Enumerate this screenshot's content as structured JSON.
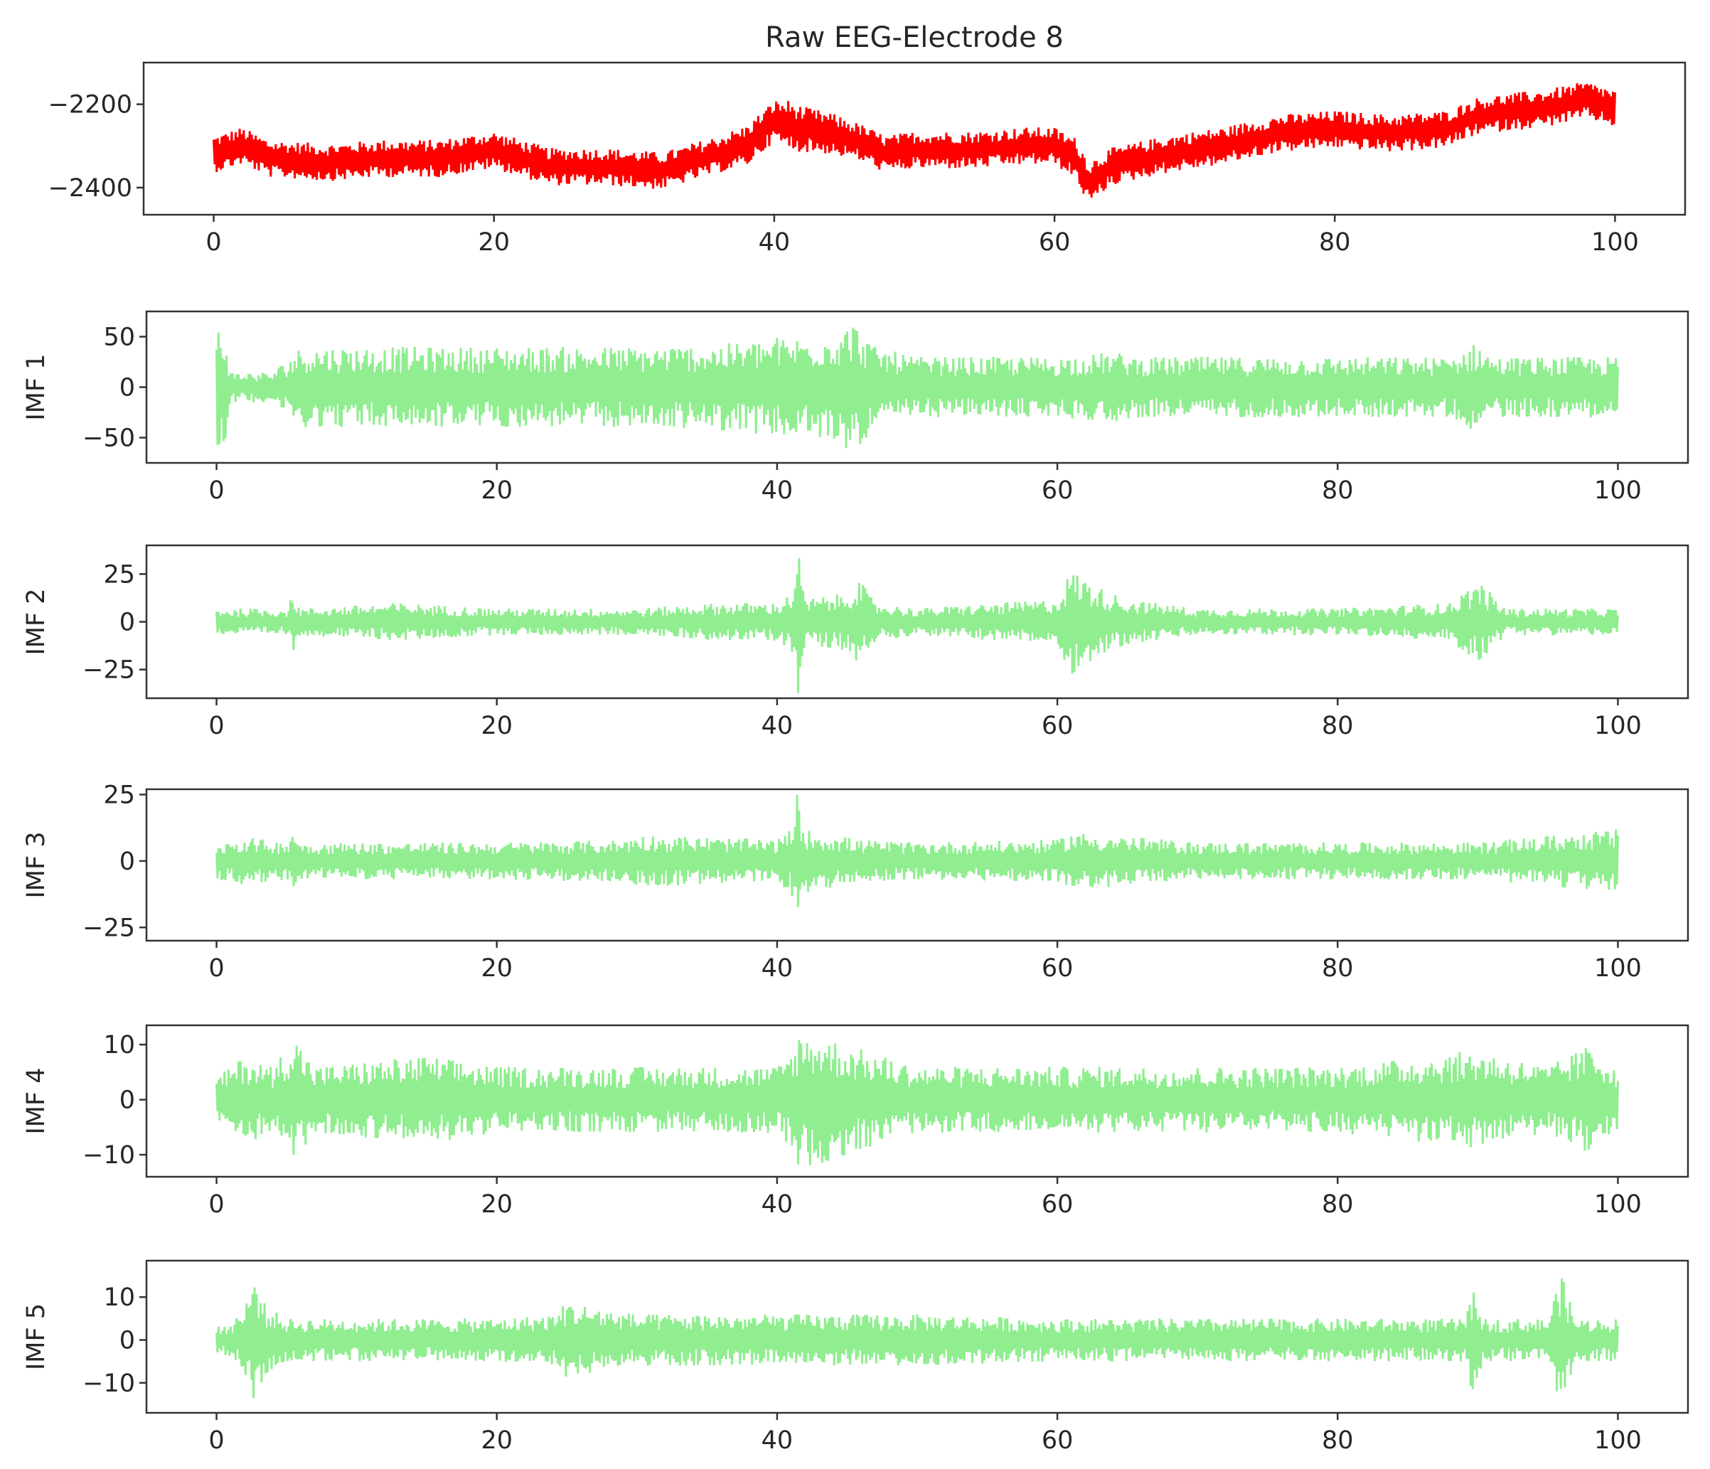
{
  "chart_data": [
    {
      "type": "line",
      "title": "Raw EEG-Electrode 8",
      "ylabel": "",
      "xlabel": "",
      "xlim": [
        -5,
        105
      ],
      "ylim": [
        -2465,
        -2100
      ],
      "xticks": [
        0,
        20,
        40,
        60,
        80,
        100
      ],
      "yticks": [
        -2200,
        -2400
      ],
      "color": "#ff0000",
      "series": [
        {
          "x": [
            0,
            1,
            2,
            4,
            8,
            12,
            16,
            20,
            24,
            28,
            32,
            36,
            38,
            40,
            41,
            42,
            44,
            46,
            48,
            50,
            54,
            58,
            60,
            61.5,
            62.5,
            64,
            68,
            72,
            76,
            80,
            84,
            88,
            90,
            92,
            95,
            98,
            100
          ],
          "y": [
            -2320,
            -2310,
            -2300,
            -2330,
            -2340,
            -2330,
            -2330,
            -2310,
            -2350,
            -2350,
            -2360,
            -2320,
            -2300,
            -2240,
            -2250,
            -2260,
            -2270,
            -2290,
            -2320,
            -2310,
            -2310,
            -2300,
            -2300,
            -2330,
            -2390,
            -2350,
            -2320,
            -2300,
            -2270,
            -2260,
            -2270,
            -2260,
            -2230,
            -2220,
            -2210,
            -2190,
            -2210
          ],
          "spread": [
            45,
            45,
            45,
            45,
            45,
            45,
            45,
            45,
            45,
            45,
            45,
            45,
            50,
            50,
            60,
            55,
            50,
            45,
            45,
            45,
            45,
            45,
            45,
            50,
            55,
            45,
            45,
            45,
            45,
            45,
            45,
            45,
            45,
            45,
            45,
            45,
            45
          ]
        }
      ]
    },
    {
      "type": "line",
      "title": "",
      "ylabel": "IMF 1",
      "xlabel": "",
      "xlim": [
        -5,
        105
      ],
      "ylim": [
        -75,
        75
      ],
      "xticks": [
        0,
        20,
        40,
        60,
        80,
        100
      ],
      "yticks": [
        50,
        0,
        -50
      ],
      "color": "#90ee90",
      "series": [
        {
          "x": [
            0,
            0.6,
            1,
            4,
            6,
            10,
            20,
            30,
            35,
            38,
            40,
            42,
            44,
            45.5,
            47,
            50,
            60,
            64,
            66,
            70,
            80,
            88,
            90,
            91,
            95,
            100
          ],
          "y": [
            0,
            0,
            0,
            0,
            0,
            0,
            0,
            0,
            0,
            0,
            0,
            0,
            0,
            0,
            0,
            0,
            0,
            0,
            0,
            0,
            0,
            0,
            0,
            0,
            0,
            0
          ],
          "spread": [
            68,
            55,
            15,
            15,
            40,
            40,
            40,
            40,
            42,
            45,
            50,
            50,
            55,
            65,
            40,
            30,
            30,
            35,
            30,
            30,
            30,
            30,
            45,
            30,
            30,
            30
          ]
        }
      ]
    },
    {
      "type": "line",
      "title": "",
      "ylabel": "IMF 2",
      "xlabel": "",
      "xlim": [
        -5,
        105
      ],
      "ylim": [
        -40,
        40
      ],
      "xticks": [
        0,
        20,
        40,
        60,
        80,
        100
      ],
      "yticks": [
        25,
        0,
        -25
      ],
      "color": "#90ee90",
      "series": [
        {
          "x": [
            0,
            5,
            5.5,
            6,
            13,
            20,
            30,
            36,
            40,
            41,
            41.5,
            42,
            45,
            45.6,
            47,
            50,
            60,
            61,
            63,
            65,
            70,
            80,
            88,
            90,
            92,
            100
          ],
          "y": [
            0,
            0,
            0,
            0,
            0,
            0,
            0,
            0,
            0,
            0,
            0,
            0,
            0,
            0,
            0,
            0,
            0,
            0,
            0,
            0,
            0,
            0,
            0,
            0,
            0,
            0
          ],
          "spread": [
            7,
            7,
            15,
            7,
            10,
            7,
            7,
            10,
            10,
            15,
            38,
            12,
            15,
            25,
            10,
            7,
            12,
            28,
            18,
            12,
            7,
            7,
            10,
            22,
            7,
            7
          ]
        }
      ]
    },
    {
      "type": "line",
      "title": "",
      "ylabel": "IMF 3",
      "xlabel": "",
      "xlim": [
        -5,
        105
      ],
      "ylim": [
        -30,
        27
      ],
      "xticks": [
        0,
        20,
        40,
        60,
        80,
        100
      ],
      "yticks": [
        25,
        0,
        -25
      ],
      "color": "#90ee90",
      "series": [
        {
          "x": [
            0,
            2,
            5,
            5.5,
            6,
            20,
            29,
            30,
            40,
            41,
            41.4,
            42,
            44,
            46,
            50,
            60,
            61,
            70,
            80,
            90,
            100
          ],
          "y": [
            0,
            0,
            0,
            0,
            0,
            0,
            0,
            0,
            0,
            0,
            0,
            0,
            0,
            0,
            0,
            0,
            0,
            0,
            0,
            0,
            0
          ],
          "spread": [
            7,
            9,
            7,
            14,
            7,
            7,
            8,
            10,
            8,
            12,
            26,
            12,
            10,
            8,
            7,
            8,
            11,
            7,
            7,
            7,
            12
          ]
        }
      ]
    },
    {
      "type": "line",
      "title": "",
      "ylabel": "IMF 4",
      "xlabel": "",
      "xlim": [
        -5,
        105
      ],
      "ylim": [
        -14,
        13.5
      ],
      "xticks": [
        0,
        20,
        40,
        60,
        80,
        100
      ],
      "yticks": [
        10,
        0,
        -10
      ],
      "color": "#90ee90",
      "series": [
        {
          "x": [
            0,
            2,
            4,
            5.5,
            7,
            15,
            20,
            30,
            40,
            41,
            41.5,
            43,
            45,
            50,
            60,
            70,
            80,
            90,
            95,
            98,
            100
          ],
          "y": [
            0,
            0,
            0,
            0,
            0,
            0,
            0,
            0,
            0,
            0,
            0,
            0,
            0,
            0,
            0,
            0,
            0,
            0,
            0,
            0,
            0
          ],
          "spread": [
            4,
            8,
            6,
            12,
            6,
            8,
            6,
            6,
            6,
            9,
            12,
            12,
            10,
            6,
            6,
            6,
            6,
            9,
            6,
            10,
            6
          ]
        }
      ]
    },
    {
      "type": "line",
      "title": "",
      "ylabel": "IMF 5",
      "xlabel": "",
      "xlim": [
        -5,
        105
      ],
      "ylim": [
        -17,
        18.5
      ],
      "xticks": [
        0,
        20,
        40,
        60,
        80,
        100
      ],
      "yticks": [
        10,
        0,
        -10
      ],
      "color": "#90ee90",
      "series": [
        {
          "x": [
            0,
            1,
            2,
            2.8,
            3.5,
            5,
            10,
            20,
            24,
            25,
            30,
            40,
            50,
            60,
            70,
            80,
            89,
            89.6,
            90.5,
            95,
            95.9,
            97,
            100
          ],
          "y": [
            0,
            0,
            0,
            0,
            0,
            0,
            0,
            0,
            0,
            0,
            0,
            0,
            0,
            0,
            0,
            0,
            0,
            0,
            0,
            0,
            0,
            0,
            0
          ],
          "spread": [
            3,
            4,
            8,
            16,
            8,
            5,
            5,
            5,
            6,
            9,
            6,
            6,
            6,
            5,
            5,
            5,
            5,
            12,
            5,
            5,
            16,
            5,
            5
          ]
        }
      ]
    }
  ]
}
